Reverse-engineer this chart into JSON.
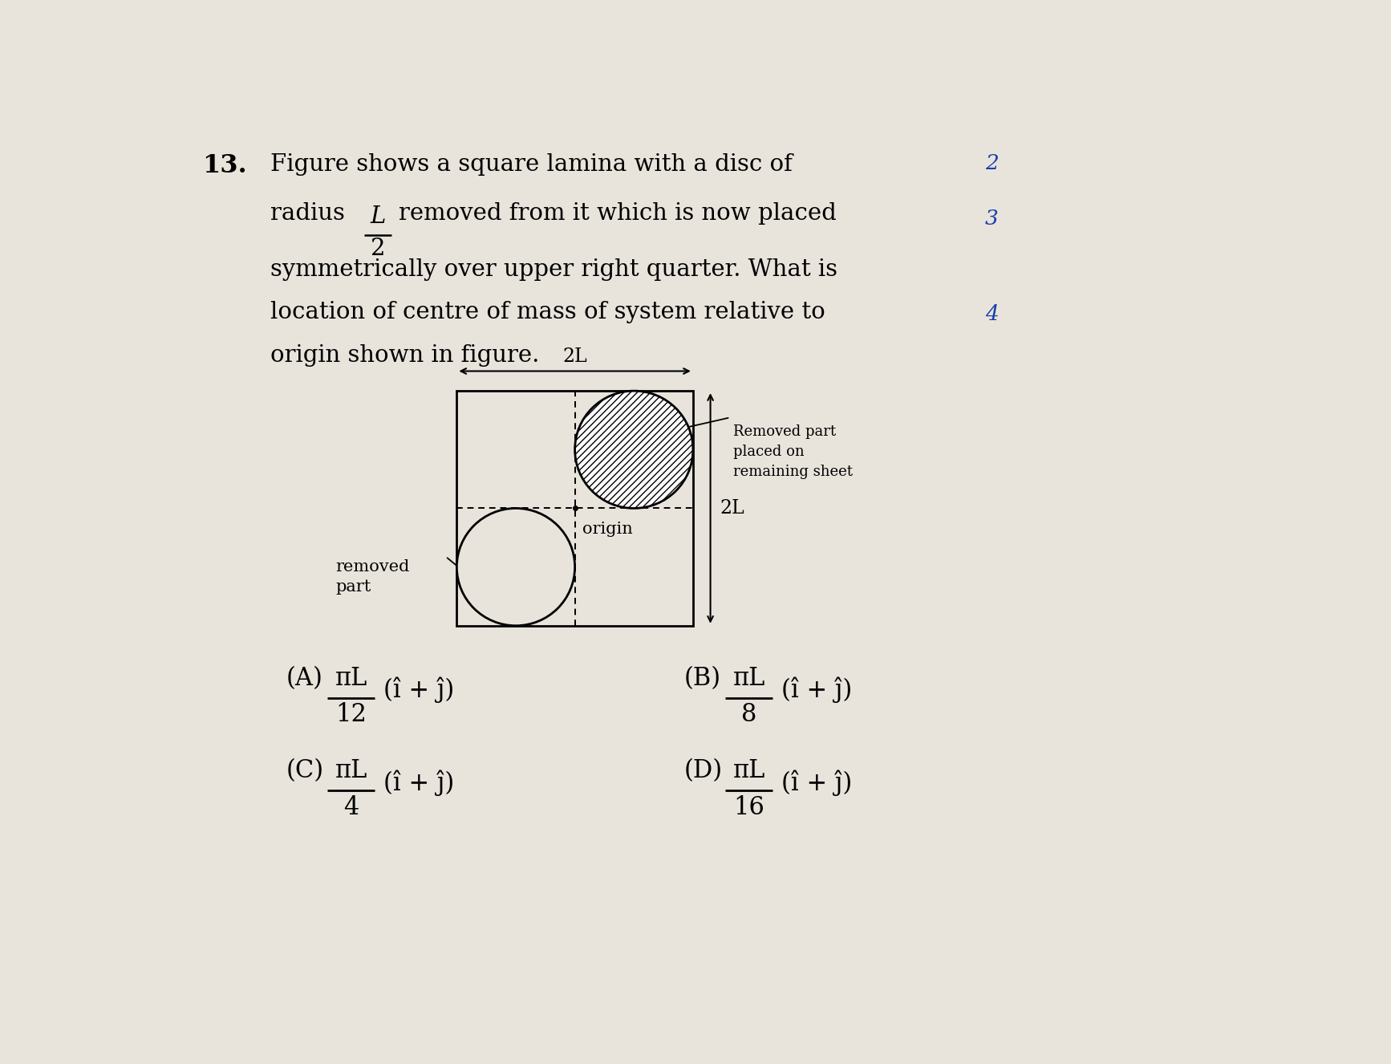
{
  "bg_color": "#e8e4dc",
  "fig_width": 17.34,
  "fig_height": 13.26,
  "question_number": "13.",
  "q_line1": "Figure shows a square lamina with a disc of",
  "q_line2a": "radius",
  "q_frac_num": "L",
  "q_frac_den": "2",
  "q_line2b": "removed from it which is now placed",
  "q_line3": "symmetrically over upper right quarter. What is",
  "q_line4": "location of centre of mass of system relative to",
  "q_line5": "origin shown in figure.",
  "side2": "2",
  "side3": "3",
  "side4": "4",
  "dim_horiz": "2L",
  "dim_vert": "2L",
  "label_origin": "origin",
  "label_removed": "removed\npart",
  "label_placed": "Removed part\nplaced on\nremaining sheet",
  "optA_lbl": "(A)",
  "optA_num": "πL",
  "optA_den": "12",
  "optA_sfx": "(î + ĵ)",
  "optB_lbl": "(B)",
  "optB_num": "πL",
  "optB_den": "8",
  "optB_sfx": "(î + ĵ)",
  "optC_lbl": "(C)",
  "optC_num": "πL",
  "optC_den": "4",
  "optC_sfx": "(î + ĵ)",
  "optD_lbl": "(D)",
  "optD_num": "πL",
  "optD_den": "16",
  "optD_sfx": "(î + ĵ)"
}
